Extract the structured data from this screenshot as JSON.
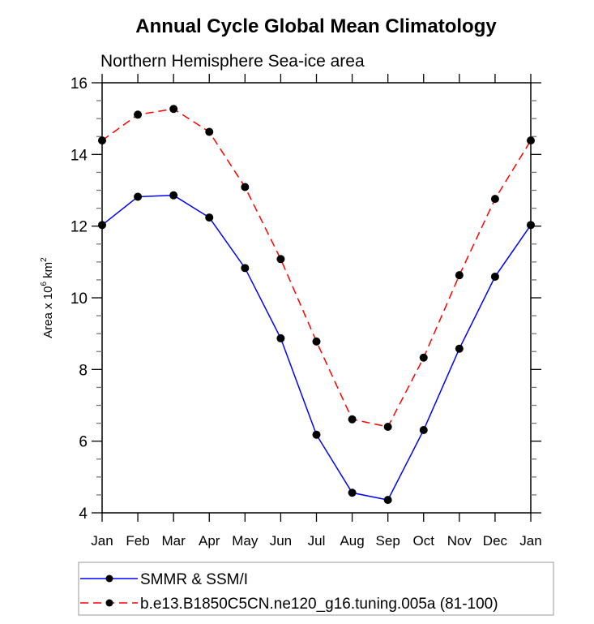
{
  "chart_data": {
    "type": "line",
    "title": "Annual Cycle Global Mean Climatology",
    "subtitle": "Northern Hemisphere Sea-ice area",
    "xlabel": "",
    "ylabel": {
      "base": "Area x 10",
      "exp": "6",
      "unit": " km",
      "unit_exp": "2"
    },
    "categories": [
      "Jan",
      "Feb",
      "Mar",
      "Apr",
      "May",
      "Jun",
      "Jul",
      "Aug",
      "Sep",
      "Oct",
      "Nov",
      "Dec",
      "Jan"
    ],
    "ylim": [
      4,
      16
    ],
    "yticks": [
      4,
      6,
      8,
      10,
      12,
      14,
      16
    ],
    "yminor_step": 0.5,
    "grid": false,
    "legend_position": "bottom",
    "series": [
      {
        "name": "SMMR & SSM/I",
        "color": "#0000ff",
        "dash": "solid",
        "marker": "filled-circle",
        "values": [
          12.03,
          12.82,
          12.86,
          12.24,
          10.83,
          8.87,
          6.18,
          4.56,
          4.36,
          6.31,
          8.58,
          10.59,
          12.03
        ]
      },
      {
        "name": "b.e13.B1850C5CN.ne120_g16.tuning.005a (81-100)",
        "color": "#ff0000",
        "dash": "dashed",
        "marker": "filled-circle",
        "values": [
          14.39,
          15.11,
          15.27,
          14.63,
          13.09,
          11.08,
          8.78,
          6.61,
          6.4,
          8.33,
          10.63,
          12.76,
          14.39
        ]
      }
    ]
  }
}
